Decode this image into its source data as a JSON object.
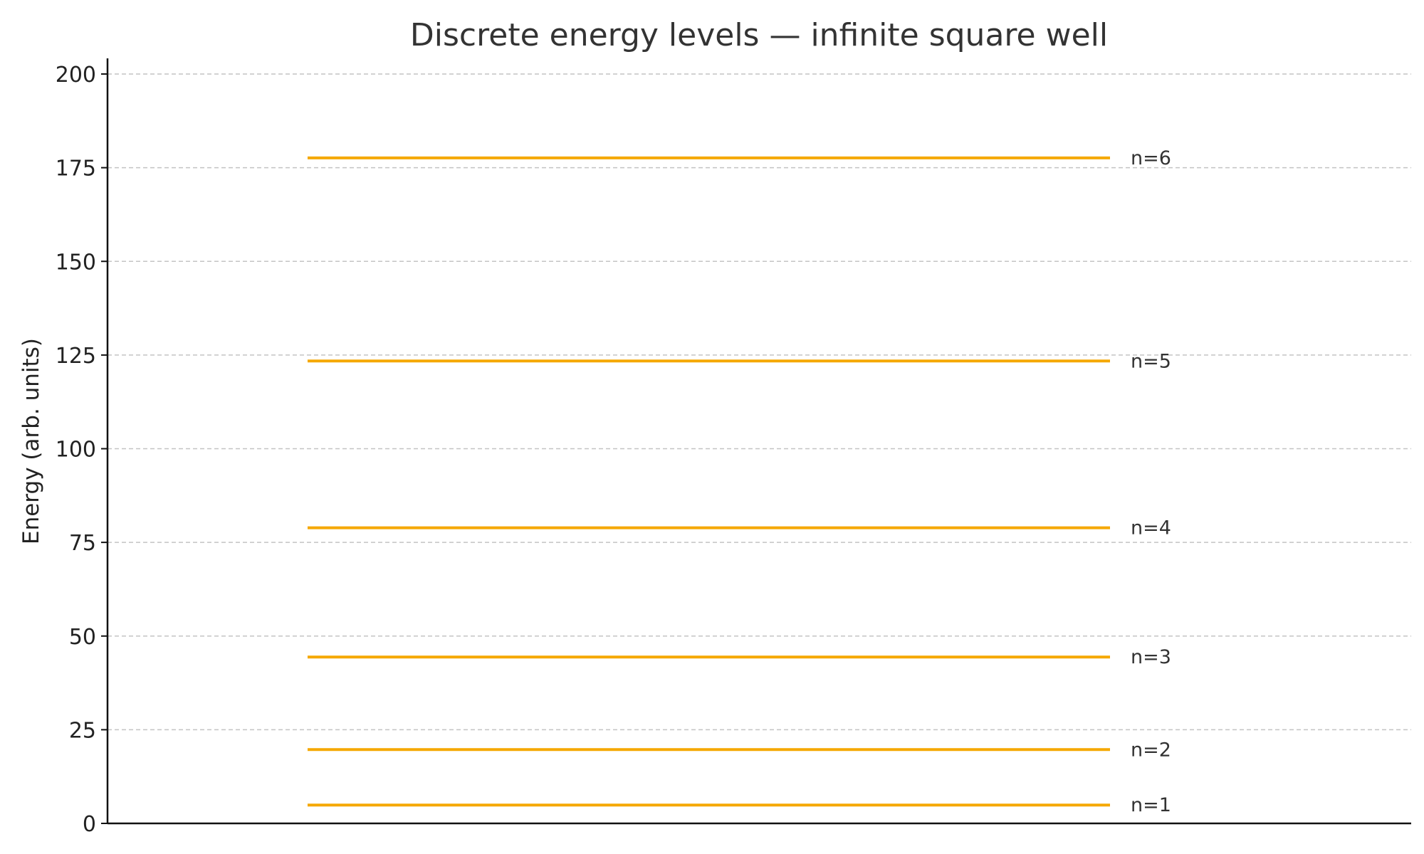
{
  "chart_data": {
    "type": "line",
    "title": "Discrete energy levels — infinite square well",
    "xlabel": "",
    "ylabel": "Energy (arb. units)",
    "ylim": [
      0,
      205
    ],
    "yticks": [
      0,
      25,
      50,
      75,
      100,
      125,
      150,
      175,
      200
    ],
    "ytick_labels": [
      "0",
      "25",
      "50",
      "75",
      "100",
      "125",
      "150",
      "175",
      "200"
    ],
    "grid": "horizontal dashed",
    "level_color": "#F5A800",
    "levels": [
      {
        "n": 1,
        "label": "n=1",
        "energy": 4.9
      },
      {
        "n": 2,
        "label": "n=2",
        "energy": 19.7
      },
      {
        "n": 3,
        "label": "n=3",
        "energy": 44.4
      },
      {
        "n": 4,
        "label": "n=4",
        "energy": 78.9
      },
      {
        "n": 5,
        "label": "n=5",
        "energy": 123.4
      },
      {
        "n": 6,
        "label": "n=6",
        "energy": 177.6
      }
    ]
  }
}
